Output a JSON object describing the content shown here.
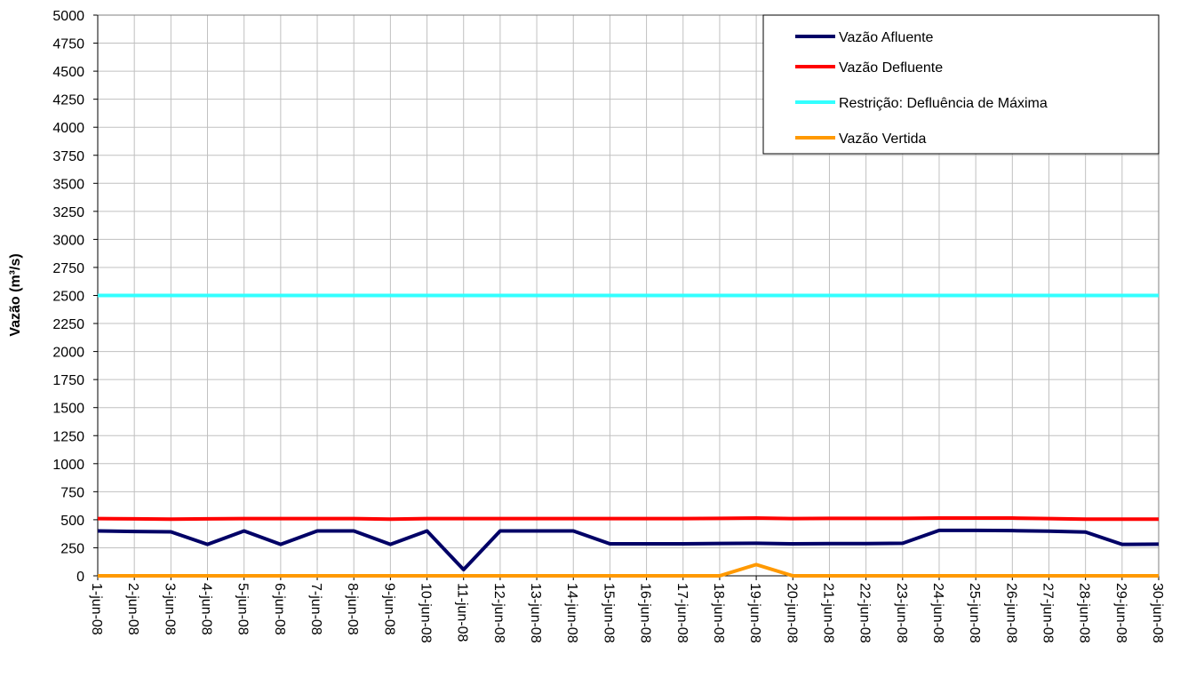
{
  "chart_data": {
    "type": "line",
    "y_label": "Vazão (m³/s)",
    "categories": [
      "1-jun-08",
      "2-jun-08",
      "3-jun-08",
      "4-jun-08",
      "5-jun-08",
      "6-jun-08",
      "7-jun-08",
      "8-jun-08",
      "9-jun-08",
      "10-jun-08",
      "11-jun-08",
      "12-jun-08",
      "13-jun-08",
      "14-jun-08",
      "15-jun-08",
      "16-jun-08",
      "17-jun-08",
      "18-jun-08",
      "19-jun-08",
      "20-jun-08",
      "21-jun-08",
      "22-jun-08",
      "23-jun-08",
      "24-jun-08",
      "25-jun-08",
      "26-jun-08",
      "27-jun-08",
      "28-jun-08",
      "29-jun-08",
      "30-jun-08"
    ],
    "series": [
      {
        "name": "Vazão Afluente",
        "color": "#000066",
        "values": [
          400,
          395,
          392,
          280,
          400,
          280,
          400,
          400,
          280,
          400,
          55,
          400,
          400,
          400,
          285,
          285,
          285,
          288,
          290,
          285,
          287,
          287,
          290,
          405,
          405,
          403,
          398,
          390,
          280,
          282
        ]
      },
      {
        "name": "Vazão Defluente",
        "color": "#ff0000",
        "values": [
          510,
          508,
          505,
          508,
          510,
          510,
          510,
          510,
          505,
          510,
          510,
          510,
          510,
          510,
          510,
          510,
          510,
          512,
          515,
          510,
          512,
          512,
          512,
          515,
          515,
          515,
          510,
          505,
          505,
          505
        ]
      },
      {
        "name": "Restrição: Defluência de Máxima",
        "color": "#33ffff",
        "values": [
          2500,
          2500,
          2500,
          2500,
          2500,
          2500,
          2500,
          2500,
          2500,
          2500,
          2500,
          2500,
          2500,
          2500,
          2500,
          2500,
          2500,
          2500,
          2500,
          2500,
          2500,
          2500,
          2500,
          2500,
          2500,
          2500,
          2500,
          2500,
          2500,
          2500
        ]
      },
      {
        "name": "Vazão Vertida",
        "color": "#ff9900",
        "values": [
          0,
          0,
          0,
          0,
          0,
          0,
          0,
          0,
          0,
          0,
          0,
          0,
          0,
          0,
          0,
          0,
          0,
          0,
          100,
          0,
          0,
          0,
          0,
          0,
          0,
          0,
          0,
          0,
          0,
          0
        ]
      }
    ],
    "ylim": [
      0,
      5000
    ],
    "yticks": [
      0,
      250,
      500,
      750,
      1000,
      1250,
      1500,
      1750,
      2000,
      2250,
      2500,
      2750,
      3000,
      3250,
      3500,
      3750,
      4000,
      4250,
      4500,
      4750,
      5000
    ],
    "grid": true,
    "legend": "top-right"
  }
}
